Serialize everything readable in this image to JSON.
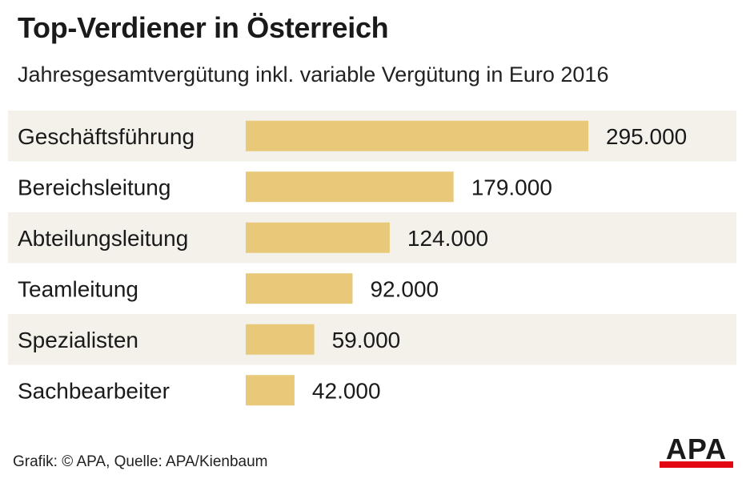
{
  "chart_data": {
    "type": "bar",
    "orientation": "horizontal",
    "title": "Top-Verdiener in Österreich",
    "subtitle": "Jahresgesamtvergütung inkl. variable Vergütung in Euro 2016",
    "categories": [
      "Geschäftsführung",
      "Bereichsleitung",
      "Abteilungsleitung",
      "Teamleitung",
      "Spezialisten",
      "Sachbearbeiter"
    ],
    "values": [
      295000,
      179000,
      124000,
      92000,
      59000,
      42000
    ],
    "value_labels": [
      "295.000",
      "179.000",
      "124.000",
      "92.000",
      "59.000",
      "42.000"
    ],
    "bar_color": "#e8c97a",
    "row_stripe_color": "#f4f1eb",
    "grid": false,
    "legend": "none"
  },
  "footer": {
    "source": "Grafik: © APA, Quelle: APA/Kienbaum",
    "logo_text": "APA"
  },
  "colors": {
    "logo_accent": "#e30613"
  }
}
